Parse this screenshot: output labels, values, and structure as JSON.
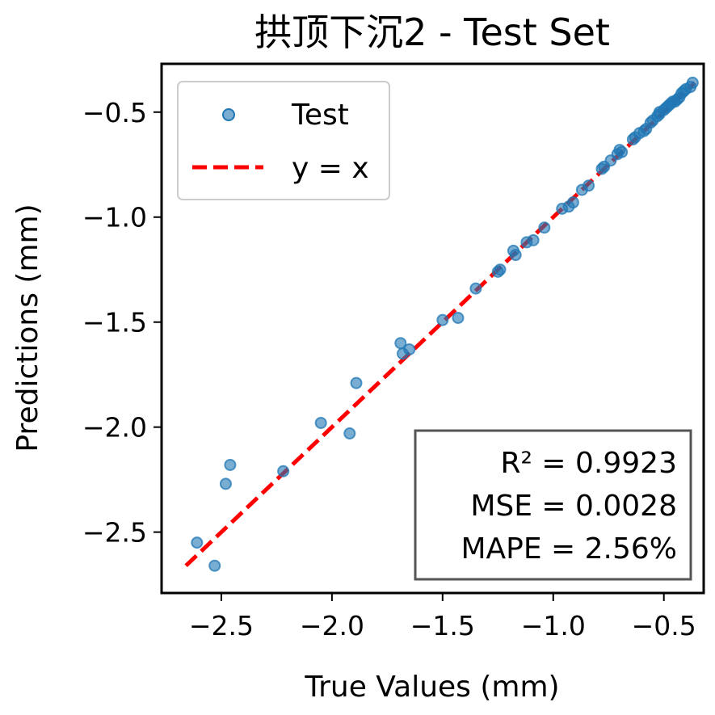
{
  "chart_data": {
    "type": "scatter",
    "title": "拱顶下沉2 - Test Set",
    "xlabel": "True Values (mm)",
    "ylabel": "Predictions (mm)",
    "xlim": [
      -2.77,
      -0.32
    ],
    "ylim": [
      -2.79,
      -0.27
    ],
    "xticks": [
      {
        "value": -2.5,
        "label": "−2.5"
      },
      {
        "value": -2.0,
        "label": "−2.0"
      },
      {
        "value": -1.5,
        "label": "−1.5"
      },
      {
        "value": -1.0,
        "label": "−1.0"
      },
      {
        "value": -0.5,
        "label": "−0.5"
      }
    ],
    "yticks": [
      {
        "value": -2.5,
        "label": "−2.5"
      },
      {
        "value": -2.0,
        "label": "−2.0"
      },
      {
        "value": -1.5,
        "label": "−1.5"
      },
      {
        "value": -1.0,
        "label": "−1.0"
      },
      {
        "value": -0.5,
        "label": "−0.5"
      }
    ],
    "grid": false,
    "legend_position": "upper-left",
    "series": [
      {
        "name": "Test",
        "kind": "scatter",
        "color": "#1f77b4",
        "points": [
          [
            -2.61,
            -2.55
          ],
          [
            -2.53,
            -2.66
          ],
          [
            -2.48,
            -2.27
          ],
          [
            -2.46,
            -2.18
          ],
          [
            -2.22,
            -2.21
          ],
          [
            -2.05,
            -1.98
          ],
          [
            -1.92,
            -2.03
          ],
          [
            -1.89,
            -1.79
          ],
          [
            -1.69,
            -1.6
          ],
          [
            -1.68,
            -1.65
          ],
          [
            -1.65,
            -1.63
          ],
          [
            -1.5,
            -1.49
          ],
          [
            -1.43,
            -1.48
          ],
          [
            -1.35,
            -1.34
          ],
          [
            -1.25,
            -1.26
          ],
          [
            -1.24,
            -1.25
          ],
          [
            -1.18,
            -1.16
          ],
          [
            -1.17,
            -1.18
          ],
          [
            -1.12,
            -1.12
          ],
          [
            -1.09,
            -1.11
          ],
          [
            -1.04,
            -1.05
          ],
          [
            -0.96,
            -0.96
          ],
          [
            -0.93,
            -0.95
          ],
          [
            -0.91,
            -0.93
          ],
          [
            -0.87,
            -0.87
          ],
          [
            -0.84,
            -0.85
          ],
          [
            -0.78,
            -0.77
          ],
          [
            -0.77,
            -0.76
          ],
          [
            -0.74,
            -0.73
          ],
          [
            -0.71,
            -0.7
          ],
          [
            -0.69,
            -0.69
          ],
          [
            -0.7,
            -0.68
          ],
          [
            -0.64,
            -0.63
          ],
          [
            -0.63,
            -0.62
          ],
          [
            -0.61,
            -0.6
          ],
          [
            -0.59,
            -0.59
          ],
          [
            -0.58,
            -0.58
          ],
          [
            -0.56,
            -0.55
          ],
          [
            -0.55,
            -0.54
          ],
          [
            -0.53,
            -0.52
          ],
          [
            -0.52,
            -0.51
          ],
          [
            -0.52,
            -0.5
          ],
          [
            -0.5,
            -0.49
          ],
          [
            -0.49,
            -0.48
          ],
          [
            -0.48,
            -0.47
          ],
          [
            -0.47,
            -0.46
          ],
          [
            -0.46,
            -0.45
          ],
          [
            -0.45,
            -0.45
          ],
          [
            -0.44,
            -0.44
          ],
          [
            -0.43,
            -0.43
          ],
          [
            -0.42,
            -0.41
          ],
          [
            -0.41,
            -0.4
          ],
          [
            -0.4,
            -0.39
          ],
          [
            -0.38,
            -0.38
          ],
          [
            -0.37,
            -0.36
          ]
        ]
      },
      {
        "name": "y = x",
        "kind": "line",
        "color": "#ff0000",
        "style": "dashed",
        "x": [
          -2.66,
          -0.36
        ],
        "y": [
          -2.66,
          -0.36
        ]
      }
    ],
    "metrics_box": {
      "position": "lower-right",
      "lines": [
        "R² = 0.9923",
        "MSE = 0.0028",
        "MAPE = 2.56%"
      ]
    }
  }
}
